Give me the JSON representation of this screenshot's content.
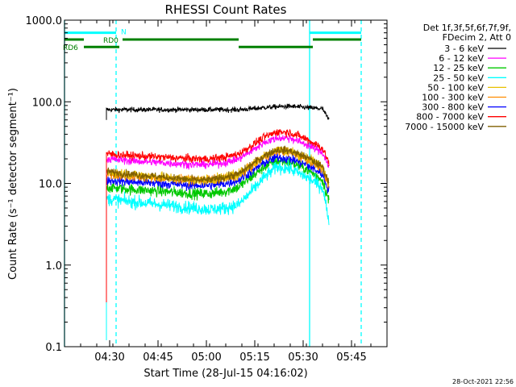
{
  "chart_data": {
    "type": "line",
    "title": "RHESSI Count Rates",
    "xlabel": "Start Time (28-Jul-15 04:16:02)",
    "ylabel": "Count Rate (s⁻¹ detector segment⁻¹)",
    "yscale": "log",
    "ylim": [
      0.1,
      1000
    ],
    "xlim_minutes": [
      0,
      100
    ],
    "x_ticks": [
      {
        "label": "04:30",
        "minute": 14
      },
      {
        "label": "04:45",
        "minute": 29
      },
      {
        "label": "05:00",
        "minute": 44
      },
      {
        "label": "05:15",
        "minute": 59
      },
      {
        "label": "05:30",
        "minute": 74
      },
      {
        "label": "05:45",
        "minute": 89
      }
    ],
    "y_ticks": [
      {
        "label": "0.1",
        "value": 0.1
      },
      {
        "label": "1.0",
        "value": 1
      },
      {
        "label": "10.0",
        "value": 10
      },
      {
        "label": "100.0",
        "value": 100
      },
      {
        "label": "1000.0",
        "value": 1000
      }
    ],
    "legend_header": [
      "Det 1f,3f,5f,6f,7f,9f,",
      "FDecim 2, Att 0"
    ],
    "legend_position": "right",
    "data_minute_range": [
      13,
      82
    ],
    "profile_minutes": [
      13,
      20,
      30,
      40,
      45,
      50,
      54,
      58,
      62,
      66,
      70,
      75,
      80,
      82
    ],
    "series": [
      {
        "name": "3 - 6 keV",
        "color": "#000000",
        "noise": 0.05,
        "values": [
          80,
          80,
          80,
          80,
          80,
          80,
          80,
          82,
          85,
          87,
          88,
          85,
          82,
          60
        ]
      },
      {
        "name": "6 - 12 keV",
        "color": "#ff00ff",
        "noise": 0.08,
        "values": [
          20,
          19,
          18,
          17,
          17,
          18,
          20,
          25,
          32,
          36,
          36,
          30,
          24,
          16
        ]
      },
      {
        "name": "12 - 25 keV",
        "color": "#00c800",
        "noise": 0.11,
        "values": [
          9,
          8.5,
          8,
          7.5,
          7.5,
          8,
          9,
          12,
          16,
          19,
          18,
          15,
          11,
          6
        ]
      },
      {
        "name": "25 - 50 keV",
        "color": "#00ffff",
        "noise": 0.13,
        "values": [
          6.5,
          6,
          5.5,
          5,
          4.8,
          5,
          5.5,
          8,
          12,
          16,
          15,
          12,
          9,
          3.5
        ]
      },
      {
        "name": "50 - 100 keV",
        "color": "#e8c000",
        "noise": 0.1,
        "values": [
          14,
          13,
          12,
          11,
          11,
          12,
          13,
          17,
          22,
          26,
          25,
          21,
          16,
          10
        ]
      },
      {
        "name": "100 - 300 keV",
        "color": "#ff8c00",
        "noise": 0.09,
        "values": [
          13,
          12,
          11.5,
          11,
          11,
          11.5,
          12.5,
          16,
          21,
          25,
          24,
          20,
          15,
          9
        ]
      },
      {
        "name": "300 - 800 keV",
        "color": "#0000ff",
        "noise": 0.1,
        "values": [
          11,
          10.5,
          10,
          9.5,
          9.5,
          10,
          11,
          14,
          18,
          21,
          20,
          17,
          13,
          8
        ]
      },
      {
        "name": "800 - 7000 keV",
        "color": "#ff0000",
        "noise": 0.08,
        "values": [
          23,
          22,
          21,
          20,
          20,
          21,
          23,
          29,
          37,
          43,
          42,
          35,
          27,
          18
        ]
      },
      {
        "name": "7000 - 15000 keV",
        "color": "#806000",
        "noise": 0.08,
        "values": [
          14,
          13,
          12,
          11,
          11,
          12,
          13,
          17,
          22,
          26,
          25,
          21,
          16,
          10
        ]
      }
    ],
    "vertical_lines": [
      {
        "minute": 0,
        "style": "solid",
        "color": "#00ffff"
      },
      {
        "minute": 16,
        "style": "dashed",
        "color": "#00ffff"
      },
      {
        "minute": 76,
        "style": "solid",
        "color": "#00ffff"
      },
      {
        "minute": 92,
        "style": "dashed",
        "color": "#00ffff"
      }
    ],
    "state_bars": [
      {
        "label": "N",
        "color": "#00ffff",
        "segments": [
          [
            0,
            16
          ],
          [
            76,
            92
          ]
        ],
        "value": 700
      },
      {
        "label": "RD0",
        "color": "#008000",
        "segments": [
          [
            0,
            6
          ],
          [
            18,
            54
          ],
          [
            77,
            92
          ]
        ],
        "value": 580
      },
      {
        "label": "RD6",
        "color": "#008000",
        "segments": [
          [
            6,
            17
          ],
          [
            54,
            77
          ]
        ],
        "value": 470
      }
    ],
    "footer_date": "28-Oct-2021 22:56"
  }
}
